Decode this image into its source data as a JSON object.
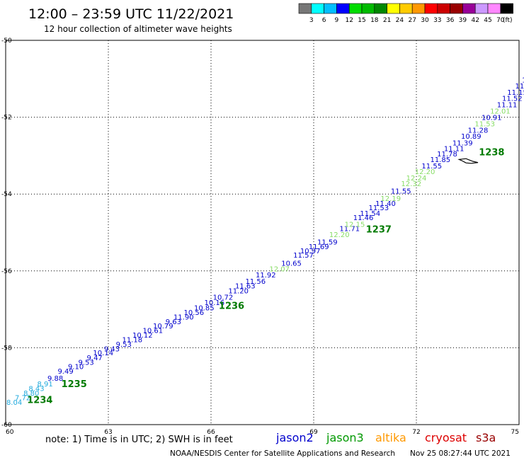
{
  "title": "12:00 – 23:59 UTC 11/22/2021",
  "subtitle": "12 hour collection of altimeter wave heights",
  "colorbar": {
    "unit": "(ft)",
    "colors": [
      "#777777",
      "#00ffff",
      "#00bfff",
      "#0000ff",
      "#00dd00",
      "#00bb00",
      "#008800",
      "#ffff00",
      "#ffcc00",
      "#ff9900",
      "#ff0000",
      "#cc0000",
      "#990000",
      "#990099",
      "#cc99ff",
      "#ff88ff",
      "#000000"
    ],
    "labels": [
      "3",
      "6",
      "9",
      "12",
      "15",
      "18",
      "21",
      "24",
      "27",
      "30",
      "33",
      "36",
      "39",
      "42",
      "45",
      "70"
    ]
  },
  "note": "note:  1) Time is in UTC;  2) SWH is in feet",
  "legend": [
    {
      "label": "jason2",
      "color": "#0000cc"
    },
    {
      "label": "jason3",
      "color": "#009900"
    },
    {
      "label": "altika",
      "color": "#ff9900"
    },
    {
      "label": "cryosat",
      "color": "#dd0000"
    },
    {
      "label": "s3a",
      "color": "#990000"
    }
  ],
  "credit": "NOAA/NESDIS Center for Satellite Applications and Research",
  "timestamp": "Nov 25 08:27:44 UTC 2021",
  "chart_data": {
    "type": "scatter",
    "xlim": [
      60,
      75
    ],
    "ylim": [
      -60,
      -50
    ],
    "xticks": [
      60,
      63,
      66,
      69,
      72,
      75
    ],
    "xtick_labels": [
      "60",
      "63",
      "66",
      "69",
      "72",
      "75"
    ],
    "yticks": [
      -50,
      -52,
      -54,
      -56,
      -58,
      -60
    ],
    "ytick_labels": [
      "-50",
      "-52",
      "-54",
      "-56",
      "-58",
      "-60"
    ],
    "grid": true,
    "points": [
      {
        "x": 60.25,
        "y": -59.41,
        "label": "8.04",
        "color": "#22aadd"
      },
      {
        "x": 60.5,
        "y": -59.29,
        "label": "7.72",
        "color": "#22aadd"
      },
      {
        "x": 60.75,
        "y": -59.17,
        "label": "8.80",
        "color": "#22aadd"
      },
      {
        "x": 60.9,
        "y": -59.05,
        "label": "8.43",
        "color": "#22aadd"
      },
      {
        "x": 61.15,
        "y": -58.93,
        "label": "8.91",
        "color": "#22aadd"
      },
      {
        "x": 61.45,
        "y": -58.78,
        "label": "9.88",
        "color": "#0000cc"
      },
      {
        "x": 61.75,
        "y": -58.6,
        "label": "9.49",
        "color": "#0000cc"
      },
      {
        "x": 62.05,
        "y": -58.48,
        "label": "9.10",
        "color": "#0000cc"
      },
      {
        "x": 62.35,
        "y": -58.37,
        "label": "9.53",
        "color": "#0000cc"
      },
      {
        "x": 62.6,
        "y": -58.25,
        "label": "9.47",
        "color": "#0000cc"
      },
      {
        "x": 62.85,
        "y": -58.12,
        "label": "10.14",
        "color": "#0000cc"
      },
      {
        "x": 63.1,
        "y": -58.02,
        "label": "9.43",
        "color": "#0000cc"
      },
      {
        "x": 63.45,
        "y": -57.9,
        "label": "9.53",
        "color": "#0000cc"
      },
      {
        "x": 63.7,
        "y": -57.78,
        "label": "11.18",
        "color": "#0000cc"
      },
      {
        "x": 64.0,
        "y": -57.66,
        "label": "10.12",
        "color": "#0000cc"
      },
      {
        "x": 64.3,
        "y": -57.54,
        "label": "10.61",
        "color": "#0000cc"
      },
      {
        "x": 64.6,
        "y": -57.42,
        "label": "10.79",
        "color": "#0000cc"
      },
      {
        "x": 64.9,
        "y": -57.31,
        "label": "9.63",
        "color": "#0000cc"
      },
      {
        "x": 65.2,
        "y": -57.19,
        "label": "11.90",
        "color": "#0000cc"
      },
      {
        "x": 65.5,
        "y": -57.07,
        "label": "10.56",
        "color": "#0000cc"
      },
      {
        "x": 65.8,
        "y": -56.95,
        "label": "10.85",
        "color": "#0000cc"
      },
      {
        "x": 66.1,
        "y": -56.81,
        "label": "10.16",
        "color": "#0000cc"
      },
      {
        "x": 66.35,
        "y": -56.68,
        "label": "10.72",
        "color": "#0000cc"
      },
      {
        "x": 66.8,
        "y": -56.51,
        "label": "11.20",
        "color": "#0000cc"
      },
      {
        "x": 67.0,
        "y": -56.38,
        "label": "11.63",
        "color": "#0000cc"
      },
      {
        "x": 67.3,
        "y": -56.26,
        "label": "11.56",
        "color": "#0000cc"
      },
      {
        "x": 67.6,
        "y": -56.1,
        "label": "11.92",
        "color": "#0000cc"
      },
      {
        "x": 68.0,
        "y": -55.94,
        "label": "12.07",
        "color": "#88dd66"
      },
      {
        "x": 68.35,
        "y": -55.79,
        "label": "10.65",
        "color": "#0000cc"
      },
      {
        "x": 68.7,
        "y": -55.58,
        "label": "11.57",
        "color": "#0000cc"
      },
      {
        "x": 68.9,
        "y": -55.47,
        "label": "10.97",
        "color": "#0000cc"
      },
      {
        "x": 69.15,
        "y": -55.36,
        "label": "11.69",
        "color": "#0000cc"
      },
      {
        "x": 69.4,
        "y": -55.24,
        "label": "11.59",
        "color": "#0000cc"
      },
      {
        "x": 69.75,
        "y": -55.05,
        "label": "12.20",
        "color": "#88dd66"
      },
      {
        "x": 70.05,
        "y": -54.89,
        "label": "11.71",
        "color": "#0000cc"
      },
      {
        "x": 70.2,
        "y": -54.78,
        "label": "12.15",
        "color": "#88dd66"
      },
      {
        "x": 70.45,
        "y": -54.6,
        "label": "11.46",
        "color": "#0000cc"
      },
      {
        "x": 70.65,
        "y": -54.49,
        "label": "11.54",
        "color": "#0000cc"
      },
      {
        "x": 70.9,
        "y": -54.35,
        "label": "11.53",
        "color": "#0000cc"
      },
      {
        "x": 71.1,
        "y": -54.24,
        "label": "11.40",
        "color": "#0000cc"
      },
      {
        "x": 71.25,
        "y": -54.11,
        "label": "12.19",
        "color": "#88dd66"
      },
      {
        "x": 71.55,
        "y": -53.91,
        "label": "11.55",
        "color": "#0000cc"
      },
      {
        "x": 71.85,
        "y": -53.72,
        "label": "12.32",
        "color": "#88dd66"
      },
      {
        "x": 72.0,
        "y": -53.57,
        "label": "12.24",
        "color": "#88dd66"
      },
      {
        "x": 72.25,
        "y": -53.41,
        "label": "12.20",
        "color": "#88dd66"
      },
      {
        "x": 72.45,
        "y": -53.26,
        "label": "11.55",
        "color": "#0000cc"
      },
      {
        "x": 72.7,
        "y": -53.09,
        "label": "11.85",
        "color": "#0000cc"
      },
      {
        "x": 72.9,
        "y": -52.95,
        "label": "11.78",
        "color": "#0000cc"
      },
      {
        "x": 73.1,
        "y": -52.81,
        "label": "11.11",
        "color": "#0000cc"
      },
      {
        "x": 73.35,
        "y": -52.66,
        "label": "11.39",
        "color": "#0000cc"
      },
      {
        "x": 73.6,
        "y": -52.49,
        "label": "10.89",
        "color": "#0000cc"
      },
      {
        "x": 73.8,
        "y": -52.33,
        "label": "11.28",
        "color": "#0000cc"
      },
      {
        "x": 74.0,
        "y": -52.16,
        "label": "11.53",
        "color": "#88dd66"
      },
      {
        "x": 74.2,
        "y": -52.0,
        "label": "10.91",
        "color": "#0000cc"
      },
      {
        "x": 74.45,
        "y": -51.83,
        "label": "12.01",
        "color": "#88dd66"
      },
      {
        "x": 74.65,
        "y": -51.67,
        "label": "11.11",
        "color": "#0000cc"
      },
      {
        "x": 74.8,
        "y": -51.5,
        "label": "11.52",
        "color": "#0000cc"
      },
      {
        "x": 74.95,
        "y": -51.34,
        "label": "11.15",
        "color": "#0000cc"
      },
      {
        "x": 75.05,
        "y": -51.18,
        "label": "11.",
        "color": "#0000cc"
      },
      {
        "x": 75.15,
        "y": -51.02,
        "label": "1",
        "color": "#0000cc"
      }
    ],
    "pass_labels": [
      {
        "x": 61.0,
        "y": -59.35,
        "label": "1234"
      },
      {
        "x": 62.0,
        "y": -58.93,
        "label": "1235"
      },
      {
        "x": 66.6,
        "y": -56.9,
        "label": "1236"
      },
      {
        "x": 70.9,
        "y": -54.91,
        "label": "1237"
      },
      {
        "x": 74.2,
        "y": -52.9,
        "label": "1238"
      }
    ],
    "island": [
      [
        73.25,
        -53.1
      ],
      [
        73.45,
        -53.08
      ],
      [
        73.65,
        -53.15
      ],
      [
        73.8,
        -53.18
      ],
      [
        73.6,
        -53.2
      ],
      [
        73.45,
        -53.19
      ],
      [
        73.35,
        -53.14
      ],
      [
        73.25,
        -53.1
      ]
    ]
  }
}
